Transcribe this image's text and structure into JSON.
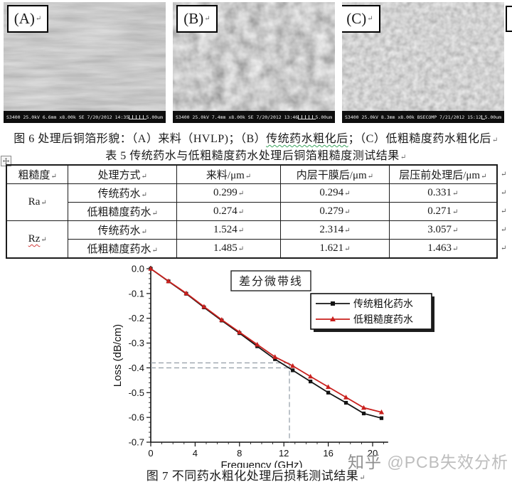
{
  "page": {
    "figure6": {
      "images": [
        {
          "label": "(A)",
          "meta": "S3400 25.0kV 6.6mm x8.00k SE 7/20/2012 14:35",
          "scale": "5.00um",
          "texture": "smooth-horizontal-streaked-copper"
        },
        {
          "label": "(B)",
          "meta": "S3400 25.0kV 7.4mm x8.00k SE 7/20/2012 13:46",
          "scale": "5.00um",
          "texture": "coarse-granular-roughened-copper"
        },
        {
          "label": "(C)",
          "meta": "S3400 25.0kV 8.3mm x8.00k BSECOMP 7/21/2012 15:12",
          "scale": "5.00um",
          "texture": "fine-speckled-light-copper"
        }
      ],
      "return_mark": "↵",
      "caption_pre": "图 6 处理后铜箔形貌：（A）来料（HVLP)；（B）",
      "caption_wavy": "传统药水粗化后",
      "caption_post": "；（C）低粗糙度药水粗化后"
    },
    "table5": {
      "caption": "表 5 传统药水与低粗糙度药水处理后铜箔粗糙度测试结果",
      "cell_marker": "↵",
      "handle_icon": "✛",
      "headers": [
        "粗糙度",
        "处理方式",
        "来料/μm",
        "内层干膜后/μm",
        "层压前处理后/μm"
      ],
      "groups": [
        {
          "name": "Ra",
          "rows": [
            {
              "method": "传统药水",
              "values": [
                "0.299",
                "0.294",
                "0.331"
              ]
            },
            {
              "method": "低粗糙度药水",
              "values": [
                "0.274",
                "0.279",
                "0.271"
              ]
            }
          ]
        },
        {
          "name": "Rz",
          "rows": [
            {
              "method": "传统药水",
              "values": [
                "1.524",
                "2.314",
                "3.057"
              ]
            },
            {
              "method": "低粗糙度药水",
              "values": [
                "1.485",
                "1.621",
                "1.463"
              ]
            }
          ]
        }
      ]
    },
    "figure7": {
      "caption": "图 7 不同药水粗化处理后损耗测试结果"
    },
    "watermark": {
      "prefix": "知乎",
      "suffix": "@PCB失效分析"
    }
  },
  "chart_data": {
    "type": "line",
    "title": "差分微带线",
    "xlabel": "Frequency (GHz)",
    "ylabel": "Loss (dB/cm)",
    "xlim": [
      0,
      21.4
    ],
    "ylim": [
      -0.7,
      0
    ],
    "x_ticks": [
      0,
      4,
      8,
      12,
      16,
      20
    ],
    "y_tick_labels": [
      "0.0",
      "-0.1",
      "-0.2",
      "-0.3",
      "-0.4",
      "-0.5",
      "-0.6",
      "-0.7"
    ],
    "grid": false,
    "legend_position": "upper-right-inside",
    "x": [
      0,
      1.6,
      3.2,
      4.8,
      6.4,
      8.0,
      9.6,
      11.2,
      12.8,
      14.4,
      16.0,
      17.6,
      19.2,
      20.8
    ],
    "series": [
      {
        "name": "传统粗化药水",
        "color": "#141414",
        "marker": "square",
        "values": [
          0,
          -0.051,
          -0.101,
          -0.156,
          -0.209,
          -0.26,
          -0.313,
          -0.365,
          -0.41,
          -0.455,
          -0.5,
          -0.541,
          -0.584,
          -0.603
        ]
      },
      {
        "name": "低粗糙度药水",
        "color": "#c9201d",
        "marker": "triangle",
        "values": [
          0,
          -0.05,
          -0.099,
          -0.153,
          -0.206,
          -0.256,
          -0.306,
          -0.356,
          -0.392,
          -0.435,
          -0.477,
          -0.519,
          -0.561,
          -0.579
        ]
      }
    ],
    "annotations": {
      "h_dashed_values": [
        -0.38,
        -0.4
      ],
      "v_dashed_x": 12.5,
      "dash_color": "#9aa3ac"
    }
  }
}
